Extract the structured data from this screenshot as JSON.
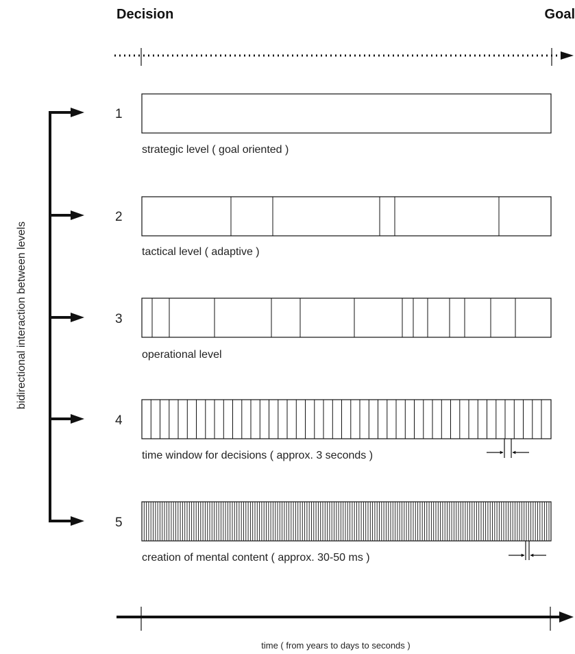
{
  "header": {
    "start_label": "Decision",
    "end_label": "Goal"
  },
  "side_label": "bidirectional interaction between levels",
  "levels": [
    {
      "number": "1",
      "caption": "strategic level ( goal oriented )"
    },
    {
      "number": "2",
      "caption": "tactical level ( adaptive )"
    },
    {
      "number": "3",
      "caption": "operational level"
    },
    {
      "number": "4",
      "caption": "time window for decisions ( approx. 3 seconds )"
    },
    {
      "number": "5",
      "caption": "creation of mental content ( approx. 30-50 ms )"
    }
  ],
  "time_axis_label": "time ( from years to days to seconds )"
}
